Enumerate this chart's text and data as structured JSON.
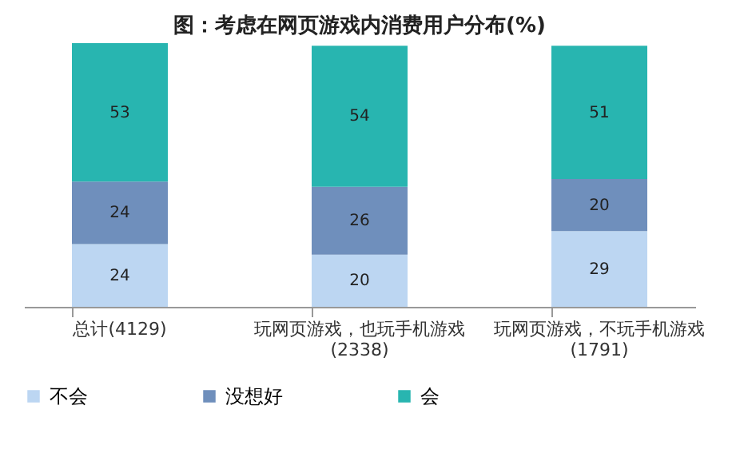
{
  "chart_data": {
    "type": "bar",
    "stacked": true,
    "title": "图：考虑在网页游戏内消费用户分布(%)",
    "categories": [
      "总计(4129)",
      "玩网页游戏，也玩手机游戏(2338)",
      "玩网页游戏，不玩手机游戏(1791)"
    ],
    "series": [
      {
        "name": "不会",
        "color": "#bcd6f2",
        "values": [
          24,
          20,
          29
        ]
      },
      {
        "name": "没想好",
        "color": "#6f8fbc",
        "values": [
          24,
          26,
          20
        ]
      },
      {
        "name": "会",
        "color": "#28b5b0",
        "values": [
          53,
          54,
          51
        ]
      }
    ],
    "data_labels": true,
    "legend": "bottom",
    "grid": false
  }
}
